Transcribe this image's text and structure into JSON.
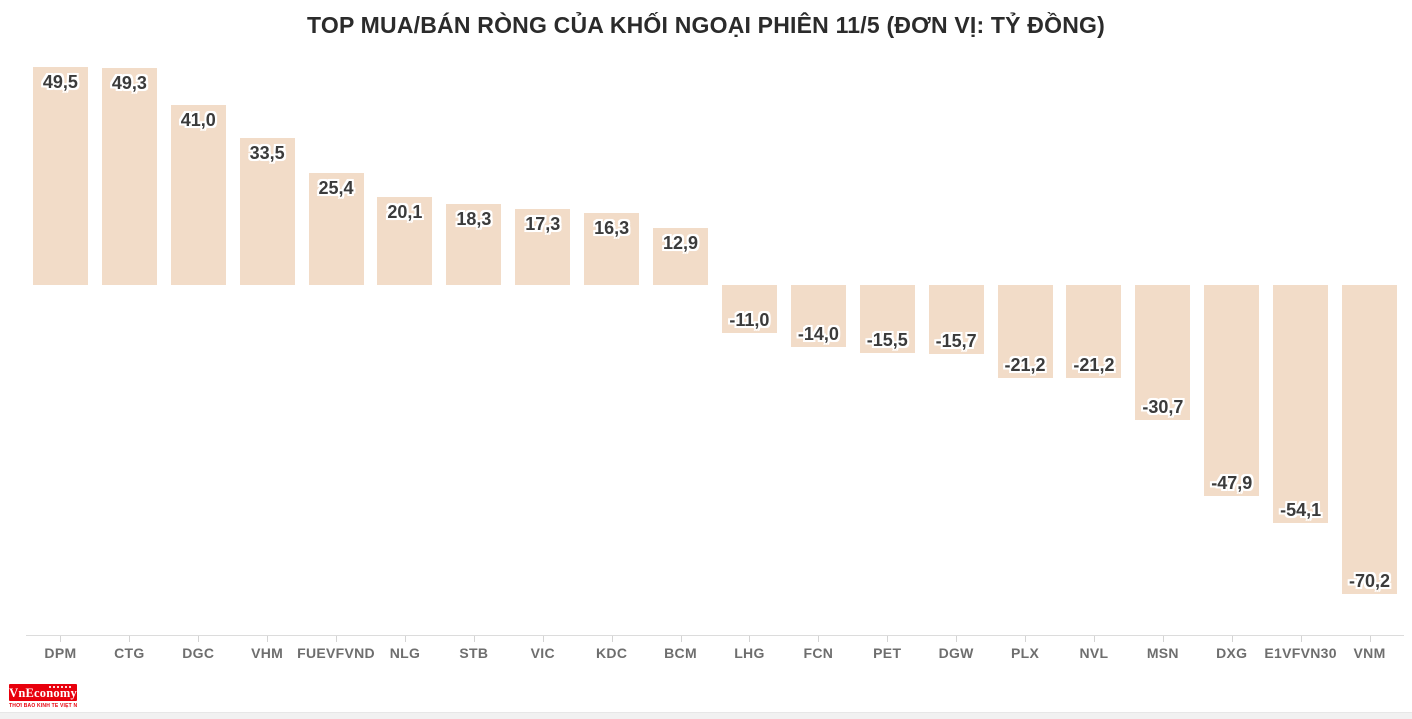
{
  "chart_data": {
    "type": "bar",
    "title": "TOP MUA/BÁN RÒNG CỦA KHỐI NGOẠI PHIÊN 11/5 (ĐƠN VỊ: TỶ ĐỒNG)",
    "categories": [
      "DPM",
      "CTG",
      "DGC",
      "VHM",
      "FUEVFVND",
      "NLG",
      "STB",
      "VIC",
      "KDC",
      "BCM",
      "LHG",
      "FCN",
      "PET",
      "DGW",
      "PLX",
      "NVL",
      "MSN",
      "DXG",
      "E1VFVN30",
      "VNM"
    ],
    "values": [
      49.5,
      49.3,
      41.0,
      33.5,
      25.4,
      20.1,
      18.3,
      17.3,
      16.3,
      12.9,
      -11.0,
      -14.0,
      -15.5,
      -15.7,
      -21.2,
      -21.2,
      -30.7,
      -47.9,
      -54.1,
      -70.2
    ],
    "value_label_format": "one-decimal-comma",
    "xlabel": "",
    "ylabel": "",
    "ylim": [
      -80,
      55
    ],
    "grid": false,
    "legend_position": "none",
    "bar_color": "#f2dcc8",
    "value_label_color": "#3b3b3b",
    "axis_line_color": "#dcdcdc",
    "category_label_color": "#6e6e6e",
    "title_color": "#2b2b2b"
  },
  "branding": {
    "logo_text": "VnEconomy",
    "logo_bg_color": "#e8000c",
    "tagline": "THỜI BÁO KINH TẾ VIỆT NAM",
    "tagline_color": "#e8000c"
  }
}
